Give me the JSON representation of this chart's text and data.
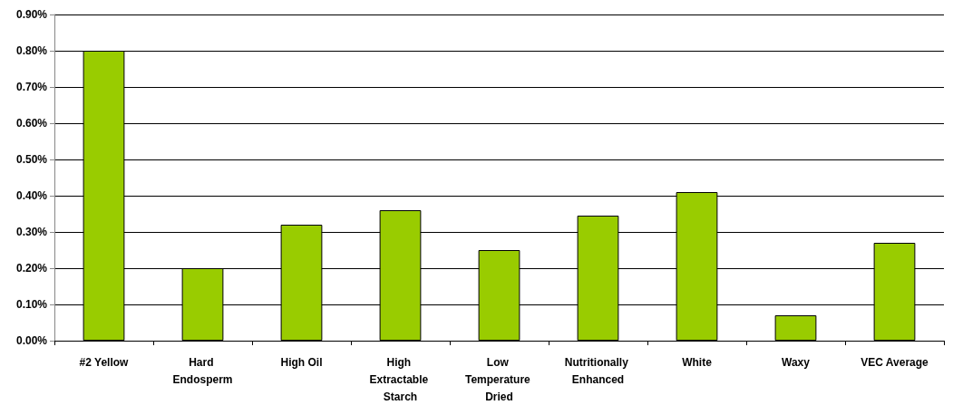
{
  "chart_data": {
    "type": "bar",
    "categories": [
      "#2 Yellow",
      "Hard Endosperm",
      "High Oil",
      "High Extractable Starch",
      "Low Temperature Dried",
      "Nutritionally Enhanced",
      "White",
      "Waxy",
      "VEC Average"
    ],
    "values": [
      0.8,
      0.2,
      0.32,
      0.36,
      0.25,
      0.345,
      0.41,
      0.07,
      0.27
    ],
    "color": "#99cc00",
    "ylim": [
      0,
      0.9
    ],
    "yticks": [
      {
        "value": 0,
        "label": "0.00%"
      },
      {
        "value": 0.1,
        "label": "0.10%"
      },
      {
        "value": 0.2,
        "label": "0.20%"
      },
      {
        "value": 0.3,
        "label": "0.30%"
      },
      {
        "value": 0.4,
        "label": "0.40%"
      },
      {
        "value": 0.5,
        "label": "0.50%"
      },
      {
        "value": 0.6,
        "label": "0.60%"
      },
      {
        "value": 0.7,
        "label": "0.70%"
      },
      {
        "value": 0.8,
        "label": "0.80%"
      },
      {
        "value": 0.9,
        "label": "0.90%"
      }
    ],
    "grid": "y"
  }
}
